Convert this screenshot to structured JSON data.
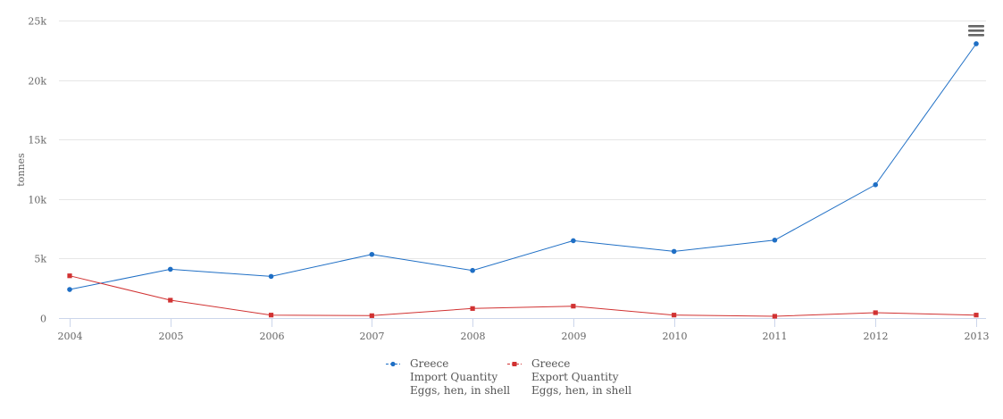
{
  "chart_data": {
    "type": "line",
    "title": "",
    "xlabel": "",
    "ylabel": "tonnes",
    "x": [
      "2004",
      "2005",
      "2006",
      "2007",
      "2008",
      "2009",
      "2010",
      "2011",
      "2012",
      "2013"
    ],
    "ylim": [
      0,
      25000
    ],
    "y_ticks": [
      {
        "value": 0,
        "label": "0"
      },
      {
        "value": 5000,
        "label": "5k"
      },
      {
        "value": 10000,
        "label": "10k"
      },
      {
        "value": 15000,
        "label": "15k"
      },
      {
        "value": 20000,
        "label": "20k"
      },
      {
        "value": 25000,
        "label": "25k"
      }
    ],
    "grid": true,
    "legend_position": "bottom-center",
    "series": [
      {
        "name": "Greece",
        "element": "Import Quantity",
        "item": "Eggs, hen, in shell",
        "color": "#1f6fc5",
        "values": [
          2400,
          4100,
          3500,
          5350,
          4000,
          6500,
          5600,
          6550,
          11200,
          23050
        ]
      },
      {
        "name": "Greece",
        "element": "Export Quantity",
        "item": "Eggs, hen, in shell",
        "color": "#d13232",
        "values": [
          3550,
          1500,
          250,
          200,
          800,
          1000,
          250,
          150,
          450,
          250
        ]
      }
    ]
  },
  "menu_icon": "hamburger-menu-icon"
}
